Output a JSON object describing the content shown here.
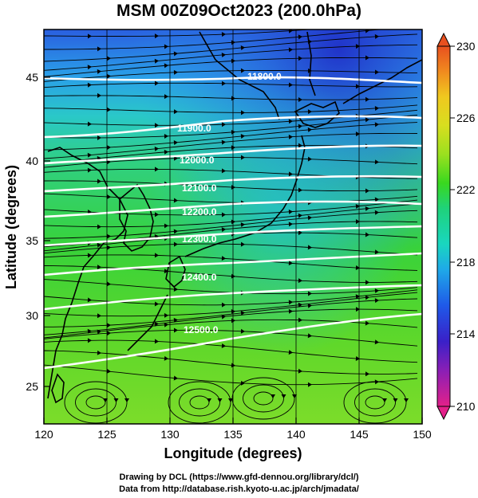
{
  "title": "MSM 00Z09Oct2023 (200.0hPa)",
  "x_axis": {
    "label": "Longitude (degrees)",
    "ticks": [
      "120",
      "125",
      "130",
      "135",
      "140",
      "145",
      "150"
    ]
  },
  "y_axis": {
    "label": "Latitude  (degrees)",
    "ticks": [
      "25",
      "30",
      "35",
      "40",
      "45"
    ]
  },
  "colorbar": {
    "ticks": [
      "230",
      "226",
      "222",
      "218",
      "214",
      "210"
    ],
    "range": [
      210,
      230
    ],
    "colors": [
      "#e3208a",
      "#8a1fb6",
      "#3a20c8",
      "#1f59e8",
      "#1fa9e8",
      "#19d6c0",
      "#1fd27a",
      "#39d81f",
      "#9be01f",
      "#d8de1f",
      "#f0c81f",
      "#f08a1f",
      "#e8501f"
    ]
  },
  "contour_labels": [
    "11800.0",
    "11900.0",
    "12000.0",
    "12100.0",
    "12200.0",
    "12300.0",
    "12400.0",
    "12500.0"
  ],
  "footer": {
    "line1": "Drawing by DCL (https://www.gfd-dennou.org/library/dcl/)",
    "line2": "Data from http://database.rish.kyoto-u.ac.jp/arch/jmadata/"
  }
}
